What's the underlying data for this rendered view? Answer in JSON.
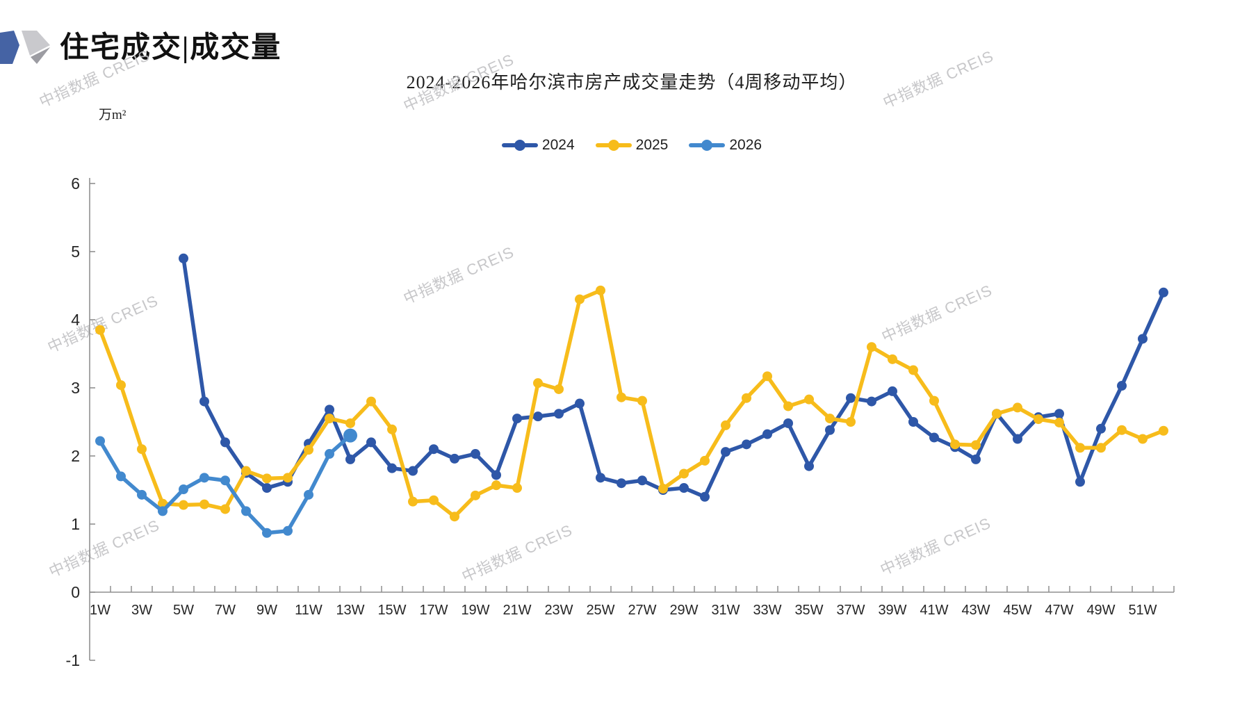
{
  "header": {
    "title": "住宅成交|成交量"
  },
  "watermark": {
    "text": "中指数据 CREIS"
  },
  "logo": {
    "name": "creis-logo",
    "blue": "#4563A4",
    "light_gray": "#C9C9CD",
    "mid_gray": "#9C9CA2"
  },
  "chart_data": {
    "type": "line",
    "title": "2024-2026年哈尔滨市房产成交量走势（4周移动平均）",
    "unit_label": "万m²",
    "legend_position": "top",
    "grid": false,
    "x_label_every": 2,
    "categories": [
      "1W",
      "2W",
      "3W",
      "4W",
      "5W",
      "6W",
      "7W",
      "8W",
      "9W",
      "10W",
      "11W",
      "12W",
      "13W",
      "14W",
      "15W",
      "16W",
      "17W",
      "18W",
      "19W",
      "20W",
      "21W",
      "22W",
      "23W",
      "24W",
      "25W",
      "26W",
      "27W",
      "28W",
      "29W",
      "30W",
      "31W",
      "32W",
      "33W",
      "34W",
      "35W",
      "36W",
      "37W",
      "38W",
      "39W",
      "40W",
      "41W",
      "42W",
      "43W",
      "44W",
      "45W",
      "46W",
      "47W",
      "48W",
      "49W",
      "50W",
      "51W",
      "52W"
    ],
    "y_axis": {
      "min": -1,
      "max": 6,
      "step": 1,
      "tick_labels": [
        "6",
        "5",
        "4",
        "3",
        "2",
        "1",
        "0",
        "-1"
      ]
    },
    "series": [
      {
        "name": "2024",
        "color": "#2E57A8",
        "values": [
          null,
          null,
          null,
          null,
          4.9,
          2.8,
          2.2,
          1.75,
          1.53,
          1.62,
          2.18,
          2.68,
          1.95,
          2.2,
          1.82,
          1.78,
          2.1,
          1.96,
          2.03,
          1.72,
          2.55,
          2.58,
          2.62,
          2.77,
          1.68,
          1.6,
          1.64,
          1.5,
          1.53,
          1.4,
          2.06,
          2.17,
          2.32,
          2.48,
          1.85,
          2.38,
          2.85,
          2.8,
          2.95,
          2.5,
          2.27,
          2.13,
          1.95,
          2.62,
          2.25,
          2.57,
          2.62,
          1.62,
          2.4,
          3.03,
          3.72,
          4.4
        ]
      },
      {
        "name": "2025",
        "color": "#F7BC1B",
        "values": [
          3.85,
          3.04,
          2.1,
          1.3,
          1.28,
          1.29,
          1.22,
          1.78,
          1.67,
          1.68,
          2.09,
          2.55,
          2.48,
          2.8,
          2.39,
          1.33,
          1.35,
          1.11,
          1.42,
          1.57,
          1.53,
          3.07,
          2.98,
          4.3,
          4.43,
          2.86,
          2.81,
          1.52,
          1.74,
          1.93,
          2.45,
          2.85,
          3.17,
          2.73,
          2.83,
          2.55,
          2.5,
          3.6,
          3.42,
          3.26,
          2.81,
          2.17,
          2.16,
          2.62,
          2.71,
          2.54,
          2.49,
          2.12,
          2.12,
          2.38,
          2.25,
          2.37
        ]
      },
      {
        "name": "2026",
        "color": "#4289CE",
        "end_marker_large": true,
        "values": [
          2.22,
          1.7,
          1.43,
          1.19,
          1.51,
          1.68,
          1.64,
          1.19,
          0.87,
          0.9,
          1.43,
          2.03,
          2.3
        ]
      }
    ]
  }
}
